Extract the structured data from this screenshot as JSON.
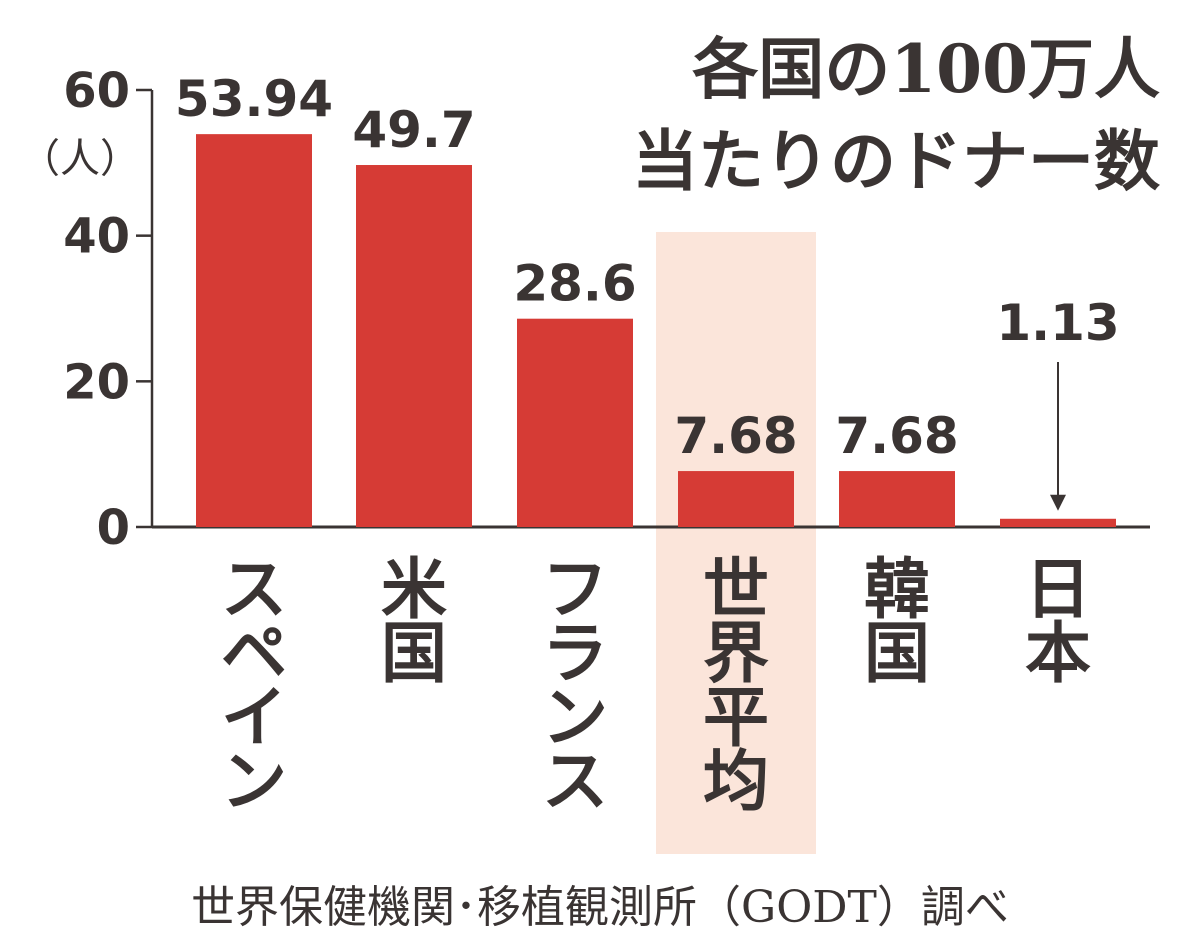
{
  "chart_data": {
    "type": "bar",
    "title_lines": [
      "各国の100万人",
      "当たりのドナー数"
    ],
    "ylabel": "（人）",
    "ylim": [
      0,
      60
    ],
    "yticks": [
      0,
      20,
      40,
      60
    ],
    "categories": [
      "スペイン",
      "米国",
      "フランス",
      "世界平均",
      "韓国",
      "日本"
    ],
    "values": [
      53.94,
      49.7,
      28.6,
      7.68,
      7.68,
      1.13
    ],
    "value_labels": [
      "53.94",
      "49.7",
      "28.6",
      "7.68",
      "7.68",
      "1.13"
    ],
    "highlight_category": "世界平均",
    "source": "世界保健機関･移植観測所（GODT）調べ",
    "bar_color": "#d63b35",
    "highlight_color": "#fbe5da",
    "text_color": "#3a3433",
    "grid": false
  }
}
